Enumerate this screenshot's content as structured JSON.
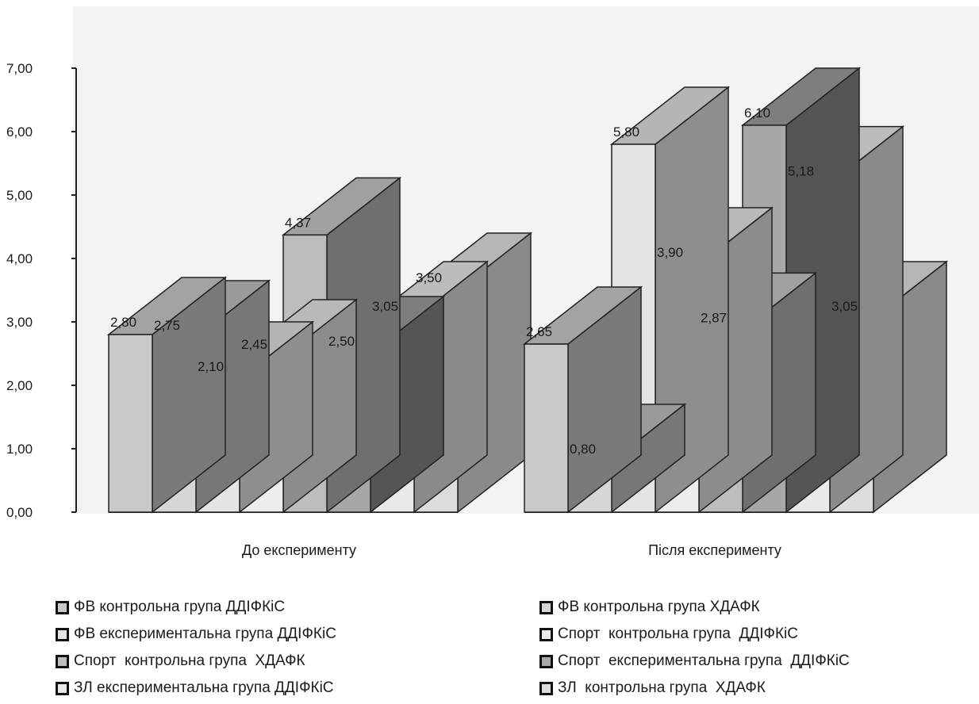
{
  "chart_data": {
    "type": "bar",
    "ylim": [
      0,
      7
    ],
    "yticks": [
      "0,00",
      "1,00",
      "2,00",
      "3,00",
      "4,00",
      "5,00",
      "6,00",
      "7,00"
    ],
    "categories": [
      "До експерименту",
      "Після експерименту"
    ],
    "groups": [
      {
        "values": [
          2.8,
          2.75,
          2.1,
          2.45,
          4.37,
          2.5,
          3.05,
          3.5
        ],
        "labels": [
          "2,80",
          "2,75",
          "2,10",
          "2,45",
          "4,37",
          "2,50",
          "3,05",
          "3,50"
        ]
      },
      {
        "values": [
          2.65,
          0.8,
          5.8,
          3.9,
          2.87,
          6.1,
          5.18,
          3.05
        ],
        "labels": [
          "2,65",
          "0,80",
          "5,80",
          "3,90",
          "2,87",
          "6,10",
          "5,18",
          "3,05"
        ]
      }
    ],
    "legend": [
      "ФВ контрольна група ДДІФКіС",
      "ФВ контрольна група ХДАФК",
      "ФВ експериментальна група ДДІФКіС",
      "Спорт  контрольна група  ДДІФКіС",
      "Спорт  контрольна група  ХДАФК",
      "Спорт  експериментальна група  ДДІФКіС",
      "ЗЛ експериментальна група ДДІФКіС",
      "ЗЛ  контрольна група  ХДАФК"
    ],
    "colors": [
      "#c9c9c9",
      "#d6d6d6",
      "#e4e4e4",
      "#ededed",
      "#bdbdbd",
      "#a7a7a7",
      "#e9e9e9",
      "#dcdcdc"
    ],
    "side_colors": [
      "#7a7a7a",
      "#777777",
      "#8e8e8e",
      "#8c8c8c",
      "#6f6f6f",
      "#555555",
      "#8a8a8a",
      "#8a8a8a"
    ],
    "top_colors": [
      "#a3a3a3",
      "#9a9a9a",
      "#b5b5b5",
      "#b9b9b9",
      "#a0a0a0",
      "#7e7e7e",
      "#bcbcbc",
      "#b6b6b6"
    ],
    "legend_position": "bottom"
  }
}
